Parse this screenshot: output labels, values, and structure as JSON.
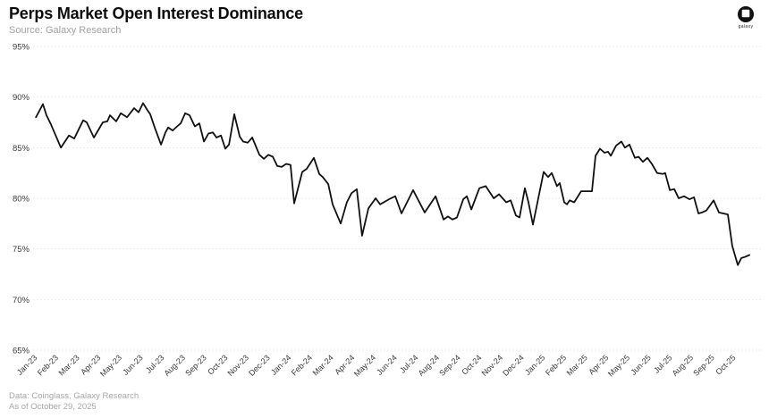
{
  "header": {
    "title": "Perps Market Open Interest Dominance",
    "source": "Source: Galaxy Research"
  },
  "logo": {
    "brand": "galaxy"
  },
  "footer": {
    "data_note": "Data: Coinglass, Galaxy Research",
    "as_of": "As of October 29, 2025"
  },
  "colors": {
    "background": "#ffffff",
    "line": "#111111",
    "grid": "#e6e6e6",
    "axis_text": "#3a3a3a",
    "muted_text": "#a8a8a8"
  },
  "chart_data": {
    "type": "line",
    "title": "Perps Market Open Interest Dominance",
    "xlabel": "",
    "ylabel": "",
    "unit": "%",
    "ylim": [
      65,
      95
    ],
    "grid": true,
    "legend": false,
    "y_ticks": [
      95,
      90,
      85,
      80,
      75,
      70,
      65
    ],
    "x_labels": [
      "Jan-23",
      "Feb-23",
      "Mar-23",
      "Apr-23",
      "May-23",
      "Jun-23",
      "Jul-23",
      "Aug-23",
      "Sep-23",
      "Oct-23",
      "Nov-23",
      "Dec-23",
      "Jan-24",
      "Feb-24",
      "Mar-24",
      "Apr-24",
      "May-24",
      "Jun-24",
      "Jul-24",
      "Aug-24",
      "Sep-24",
      "Oct-24",
      "Nov-24",
      "Dec-24",
      "Jan-25",
      "Feb-25",
      "Mar-25",
      "Apr-25",
      "May-25",
      "Jun-25",
      "Jul-25",
      "Aug-25",
      "Sep-25",
      "Oct-25"
    ],
    "x_unit": "months_since_jan_2023",
    "series": [
      {
        "name": "Perps Market Open Interest Dominance",
        "points": [
          [
            0.05,
            88.0
          ],
          [
            0.38,
            89.3
          ],
          [
            0.55,
            88.2
          ],
          [
            0.76,
            87.3
          ],
          [
            1.23,
            85.0
          ],
          [
            1.61,
            86.2
          ],
          [
            1.86,
            85.9
          ],
          [
            2.28,
            87.7
          ],
          [
            2.45,
            87.5
          ],
          [
            2.79,
            86.0
          ],
          [
            3.21,
            87.5
          ],
          [
            3.42,
            87.6
          ],
          [
            3.55,
            88.2
          ],
          [
            3.84,
            87.6
          ],
          [
            4.06,
            88.4
          ],
          [
            4.35,
            88.0
          ],
          [
            4.69,
            88.9
          ],
          [
            4.9,
            88.5
          ],
          [
            5.11,
            89.4
          ],
          [
            5.32,
            88.7
          ],
          [
            5.45,
            88.3
          ],
          [
            5.66,
            87.0
          ],
          [
            5.96,
            85.3
          ],
          [
            6.17,
            86.5
          ],
          [
            6.3,
            87.0
          ],
          [
            6.51,
            86.7
          ],
          [
            6.72,
            87.1
          ],
          [
            6.89,
            87.4
          ],
          [
            7.1,
            88.4
          ],
          [
            7.31,
            88.2
          ],
          [
            7.56,
            87.1
          ],
          [
            7.77,
            87.4
          ],
          [
            7.99,
            85.6
          ],
          [
            8.2,
            86.4
          ],
          [
            8.41,
            86.5
          ],
          [
            8.58,
            86.0
          ],
          [
            8.79,
            86.2
          ],
          [
            9.0,
            84.9
          ],
          [
            9.17,
            85.3
          ],
          [
            9.42,
            88.3
          ],
          [
            9.68,
            86.1
          ],
          [
            9.84,
            85.6
          ],
          [
            10.06,
            85.5
          ],
          [
            10.27,
            86.0
          ],
          [
            10.61,
            84.3
          ],
          [
            10.82,
            83.9
          ],
          [
            11.03,
            84.3
          ],
          [
            11.24,
            84.1
          ],
          [
            11.45,
            83.2
          ],
          [
            11.66,
            83.1
          ],
          [
            11.87,
            83.4
          ],
          [
            12.08,
            83.3
          ],
          [
            12.25,
            79.5
          ],
          [
            12.63,
            82.6
          ],
          [
            12.84,
            82.9
          ],
          [
            13.18,
            84.0
          ],
          [
            13.44,
            82.4
          ],
          [
            13.6,
            82.1
          ],
          [
            13.86,
            81.4
          ],
          [
            14.07,
            79.4
          ],
          [
            14.45,
            77.5
          ],
          [
            14.74,
            79.6
          ],
          [
            14.96,
            80.5
          ],
          [
            15.21,
            80.9
          ],
          [
            15.46,
            76.3
          ],
          [
            15.76,
            79.0
          ],
          [
            16.1,
            80.0
          ],
          [
            16.31,
            79.4
          ],
          [
            16.73,
            79.9
          ],
          [
            17.03,
            80.2
          ],
          [
            17.32,
            78.5
          ],
          [
            17.87,
            80.8
          ],
          [
            18.42,
            78.6
          ],
          [
            18.93,
            80.2
          ],
          [
            19.31,
            77.9
          ],
          [
            19.52,
            78.2
          ],
          [
            19.73,
            77.9
          ],
          [
            19.94,
            78.1
          ],
          [
            20.24,
            79.9
          ],
          [
            20.41,
            80.2
          ],
          [
            20.62,
            78.9
          ],
          [
            21.0,
            81.0
          ],
          [
            21.3,
            81.2
          ],
          [
            21.68,
            80.0
          ],
          [
            21.93,
            80.4
          ],
          [
            22.27,
            79.6
          ],
          [
            22.48,
            79.8
          ],
          [
            22.73,
            78.3
          ],
          [
            22.9,
            78.1
          ],
          [
            23.15,
            81.0
          ],
          [
            23.32,
            79.6
          ],
          [
            23.53,
            77.4
          ],
          [
            24.04,
            82.6
          ],
          [
            24.25,
            82.1
          ],
          [
            24.42,
            82.5
          ],
          [
            24.67,
            81.2
          ],
          [
            24.8,
            81.5
          ],
          [
            25.01,
            79.6
          ],
          [
            25.14,
            79.4
          ],
          [
            25.27,
            79.8
          ],
          [
            25.48,
            79.6
          ],
          [
            25.69,
            80.3
          ],
          [
            25.81,
            80.7
          ],
          [
            26.32,
            80.7
          ],
          [
            26.49,
            84.2
          ],
          [
            26.7,
            84.9
          ],
          [
            26.91,
            84.5
          ],
          [
            27.08,
            84.6
          ],
          [
            27.21,
            84.2
          ],
          [
            27.46,
            85.2
          ],
          [
            27.71,
            85.6
          ],
          [
            27.88,
            85.0
          ],
          [
            28.09,
            85.3
          ],
          [
            28.35,
            84.0
          ],
          [
            28.52,
            84.1
          ],
          [
            28.73,
            83.6
          ],
          [
            28.94,
            84.0
          ],
          [
            29.15,
            83.4
          ],
          [
            29.4,
            82.5
          ],
          [
            29.66,
            82.4
          ],
          [
            29.78,
            82.5
          ],
          [
            30.0,
            80.8
          ],
          [
            30.21,
            80.9
          ],
          [
            30.42,
            80.0
          ],
          [
            30.67,
            80.2
          ],
          [
            30.93,
            79.9
          ],
          [
            31.14,
            80.1
          ],
          [
            31.35,
            78.5
          ],
          [
            31.52,
            78.6
          ],
          [
            31.73,
            78.8
          ],
          [
            32.07,
            79.8
          ],
          [
            32.32,
            78.6
          ],
          [
            32.53,
            78.5
          ],
          [
            32.74,
            78.4
          ],
          [
            32.95,
            75.3
          ],
          [
            33.21,
            73.4
          ],
          [
            33.38,
            74.1
          ],
          [
            33.55,
            74.2
          ],
          [
            33.76,
            74.4
          ]
        ]
      }
    ]
  }
}
